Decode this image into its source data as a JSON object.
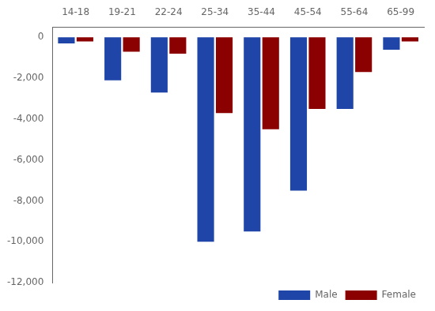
{
  "chart_data": {
    "type": "bar",
    "categories": [
      "14-18",
      "19-21",
      "22-24",
      "25-34",
      "35-44",
      "45-54",
      "55-64",
      "65-99"
    ],
    "series": [
      {
        "name": "Male",
        "color": "#1F45A8",
        "values": [
          -300,
          -2100,
          -2700,
          -10000,
          -9500,
          -7500,
          -3500,
          -600
        ]
      },
      {
        "name": "Female",
        "color": "#8B0000",
        "values": [
          -200,
          -700,
          -800,
          -3700,
          -4500,
          -3500,
          -1700,
          -200
        ]
      }
    ],
    "ylim": [
      -12000,
      500
    ],
    "yticks": [
      0,
      {
        "value": -2000,
        "label": "-2,000"
      },
      {
        "value": -4000,
        "label": "-4,000"
      },
      {
        "value": -6000,
        "label": "-6,000"
      },
      {
        "value": -8000,
        "label": "-8,000"
      },
      {
        "value": -10000,
        "label": "-10,000"
      },
      {
        "value": -12000,
        "label": "-12,000"
      }
    ],
    "grid": false,
    "legend": "lower right"
  }
}
